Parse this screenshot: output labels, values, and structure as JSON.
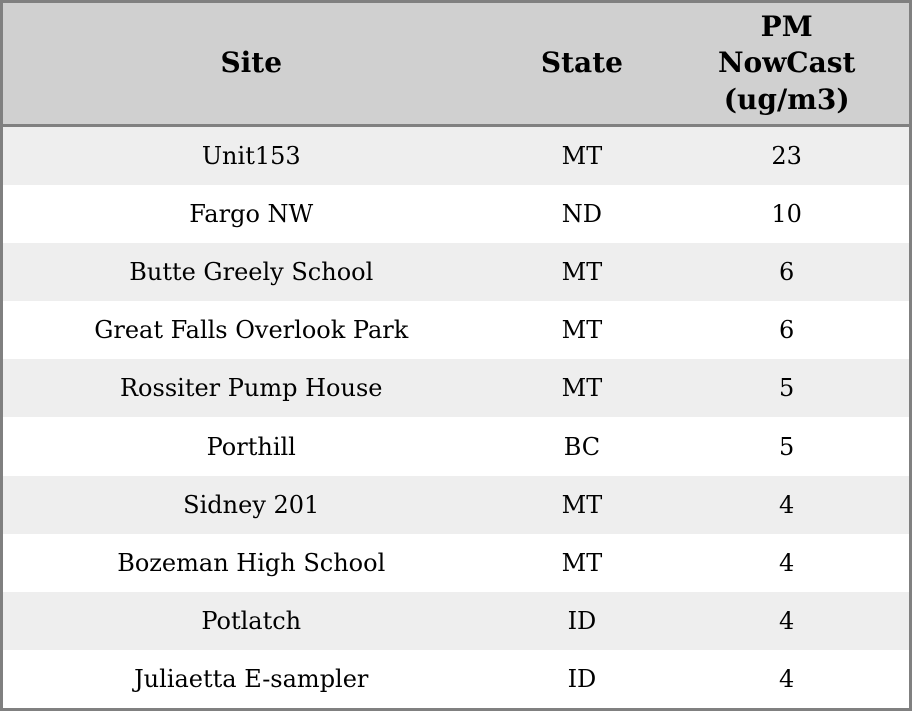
{
  "headers_display": [
    "Site",
    "State",
    "PM\nNowCast\n(ug/m3)"
  ],
  "chart_data": {
    "type": "table",
    "title": "",
    "columns": [
      "Site",
      "State",
      "PM NowCast (ug/m3)"
    ],
    "rows": [
      [
        "Unit153",
        "MT",
        23
      ],
      [
        "Fargo NW",
        "ND",
        10
      ],
      [
        "Butte Greely School",
        "MT",
        6
      ],
      [
        "Great Falls Overlook Park",
        "MT",
        6
      ],
      [
        "Rossiter Pump House",
        "MT",
        5
      ],
      [
        "Porthill",
        "BC",
        5
      ],
      [
        "Sidney 201",
        "MT",
        4
      ],
      [
        "Bozeman High School",
        "MT",
        4
      ],
      [
        "Potlatch",
        "ID",
        4
      ],
      [
        "Juliaetta E-sampler",
        "ID",
        4
      ]
    ],
    "layout": {
      "striped": true,
      "header_position": "top",
      "cell_alignment": "center"
    }
  },
  "colors": {
    "header_bg": "#d0d0d0",
    "row_alt_bg": "#eeeeee",
    "row_bg": "#ffffff",
    "border": "#808080",
    "text": "#000000"
  }
}
